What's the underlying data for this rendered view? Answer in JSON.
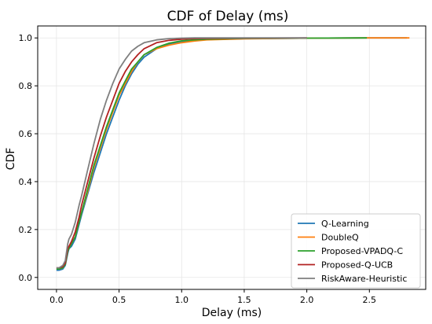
{
  "chart_data": {
    "type": "line",
    "title": "CDF of Delay (ms)",
    "xlabel": "Delay (ms)",
    "ylabel": "CDF",
    "xlim": [
      -0.15,
      2.95
    ],
    "ylim": [
      -0.05,
      1.05
    ],
    "xticks": [
      0.0,
      0.5,
      1.0,
      1.5,
      2.0,
      2.5
    ],
    "yticks": [
      0.0,
      0.2,
      0.4,
      0.6,
      0.8,
      1.0
    ],
    "x_tick_labels": [
      "0.0",
      "0.5",
      "1.0",
      "1.5",
      "2.0",
      "2.5"
    ],
    "y_tick_labels": [
      "0.0",
      "0.2",
      "0.4",
      "0.6",
      "0.8",
      "1.0"
    ],
    "grid": true,
    "legend_position": "bottom-right",
    "series": [
      {
        "name": "Q-Learning",
        "color": "#1f77b4",
        "x": [
          0.0,
          0.02,
          0.05,
          0.07,
          0.09,
          0.1,
          0.12,
          0.15,
          0.18,
          0.2,
          0.25,
          0.3,
          0.35,
          0.4,
          0.45,
          0.5,
          0.55,
          0.6,
          0.65,
          0.7,
          0.8,
          0.9,
          1.0,
          1.1,
          1.2,
          1.5,
          2.0,
          2.5,
          2.8
        ],
        "y": [
          0.03,
          0.03,
          0.035,
          0.05,
          0.1,
          0.12,
          0.13,
          0.16,
          0.22,
          0.26,
          0.35,
          0.44,
          0.52,
          0.6,
          0.67,
          0.74,
          0.8,
          0.85,
          0.89,
          0.92,
          0.955,
          0.975,
          0.985,
          0.99,
          0.993,
          0.997,
          0.999,
          1.0,
          1.0
        ]
      },
      {
        "name": "DoubleQ",
        "color": "#ff7f0e",
        "x": [
          0.0,
          0.02,
          0.05,
          0.07,
          0.09,
          0.1,
          0.12,
          0.15,
          0.18,
          0.2,
          0.25,
          0.3,
          0.35,
          0.4,
          0.45,
          0.5,
          0.55,
          0.6,
          0.65,
          0.7,
          0.8,
          0.9,
          1.0,
          1.1,
          1.2,
          1.5,
          2.0,
          2.5,
          2.82
        ],
        "y": [
          0.035,
          0.035,
          0.04,
          0.055,
          0.11,
          0.125,
          0.14,
          0.17,
          0.23,
          0.27,
          0.36,
          0.46,
          0.54,
          0.62,
          0.69,
          0.76,
          0.81,
          0.86,
          0.9,
          0.93,
          0.955,
          0.97,
          0.98,
          0.987,
          0.992,
          0.996,
          0.999,
          1.0,
          1.0
        ]
      },
      {
        "name": "Proposed-VPADQ-C",
        "color": "#2ca02c",
        "x": [
          0.0,
          0.02,
          0.05,
          0.07,
          0.09,
          0.1,
          0.12,
          0.15,
          0.18,
          0.2,
          0.25,
          0.3,
          0.35,
          0.4,
          0.45,
          0.5,
          0.55,
          0.6,
          0.65,
          0.7,
          0.8,
          0.9,
          1.0,
          1.1,
          1.2,
          1.5,
          2.0,
          2.48
        ],
        "y": [
          0.035,
          0.035,
          0.04,
          0.055,
          0.11,
          0.12,
          0.14,
          0.17,
          0.23,
          0.27,
          0.37,
          0.47,
          0.55,
          0.63,
          0.7,
          0.77,
          0.82,
          0.87,
          0.9,
          0.93,
          0.96,
          0.978,
          0.988,
          0.992,
          0.995,
          0.998,
          0.999,
          1.0
        ]
      },
      {
        "name": "Proposed-Q-UCB",
        "color": "#b22222",
        "x": [
          0.0,
          0.02,
          0.05,
          0.07,
          0.09,
          0.1,
          0.12,
          0.15,
          0.18,
          0.2,
          0.25,
          0.3,
          0.35,
          0.4,
          0.45,
          0.5,
          0.55,
          0.6,
          0.65,
          0.7,
          0.8,
          0.9,
          1.0,
          1.1,
          1.2,
          1.5,
          2.0
        ],
        "y": [
          0.04,
          0.04,
          0.045,
          0.06,
          0.12,
          0.13,
          0.15,
          0.19,
          0.25,
          0.3,
          0.4,
          0.5,
          0.59,
          0.67,
          0.74,
          0.81,
          0.86,
          0.9,
          0.93,
          0.955,
          0.98,
          0.99,
          0.995,
          0.997,
          0.998,
          0.999,
          1.0
        ]
      },
      {
        "name": "RiskAware-Heuristic",
        "color": "#7f7f7f",
        "x": [
          0.0,
          0.02,
          0.05,
          0.07,
          0.09,
          0.1,
          0.12,
          0.15,
          0.18,
          0.2,
          0.25,
          0.3,
          0.35,
          0.4,
          0.45,
          0.5,
          0.55,
          0.6,
          0.65,
          0.7,
          0.8,
          0.9,
          1.0,
          1.1,
          1.2,
          1.5,
          2.0
        ],
        "y": [
          0.04,
          0.04,
          0.05,
          0.07,
          0.14,
          0.16,
          0.18,
          0.23,
          0.3,
          0.34,
          0.45,
          0.56,
          0.66,
          0.74,
          0.81,
          0.87,
          0.91,
          0.945,
          0.965,
          0.98,
          0.992,
          0.997,
          0.999,
          1.0,
          1.0,
          1.0,
          1.0
        ]
      }
    ]
  }
}
